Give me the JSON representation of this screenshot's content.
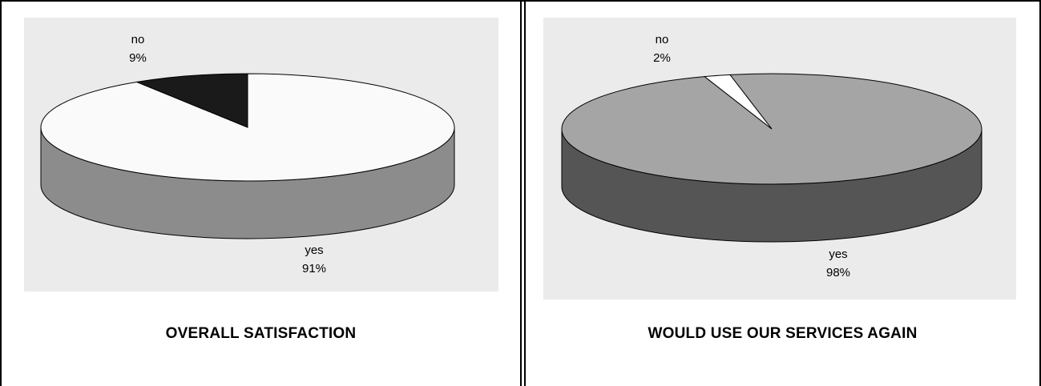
{
  "chart_data": [
    {
      "type": "pie",
      "title": "OVERALL SATISFACTION",
      "slices": [
        {
          "label": "no",
          "value": 9,
          "percent_label": "9%"
        },
        {
          "label": "yes",
          "value": 91,
          "percent_label": "91%"
        }
      ],
      "colors": {
        "no_top": "#1a1a1a",
        "no_side": "#000000",
        "yes_top": "#fafafa",
        "yes_side": "#8c8c8c",
        "background": "#ebebeb"
      },
      "style": "3d-pie"
    },
    {
      "type": "pie",
      "title": "WOULD USE OUR SERVICES AGAIN",
      "slices": [
        {
          "label": "no",
          "value": 2,
          "percent_label": "2%"
        },
        {
          "label": "yes",
          "value": 98,
          "percent_label": "98%"
        }
      ],
      "colors": {
        "no_top": "#ffffff",
        "no_side": "#cccccc",
        "yes_top": "#a5a5a5",
        "yes_side": "#555555",
        "background": "#ebebeb"
      },
      "style": "3d-pie"
    }
  ]
}
